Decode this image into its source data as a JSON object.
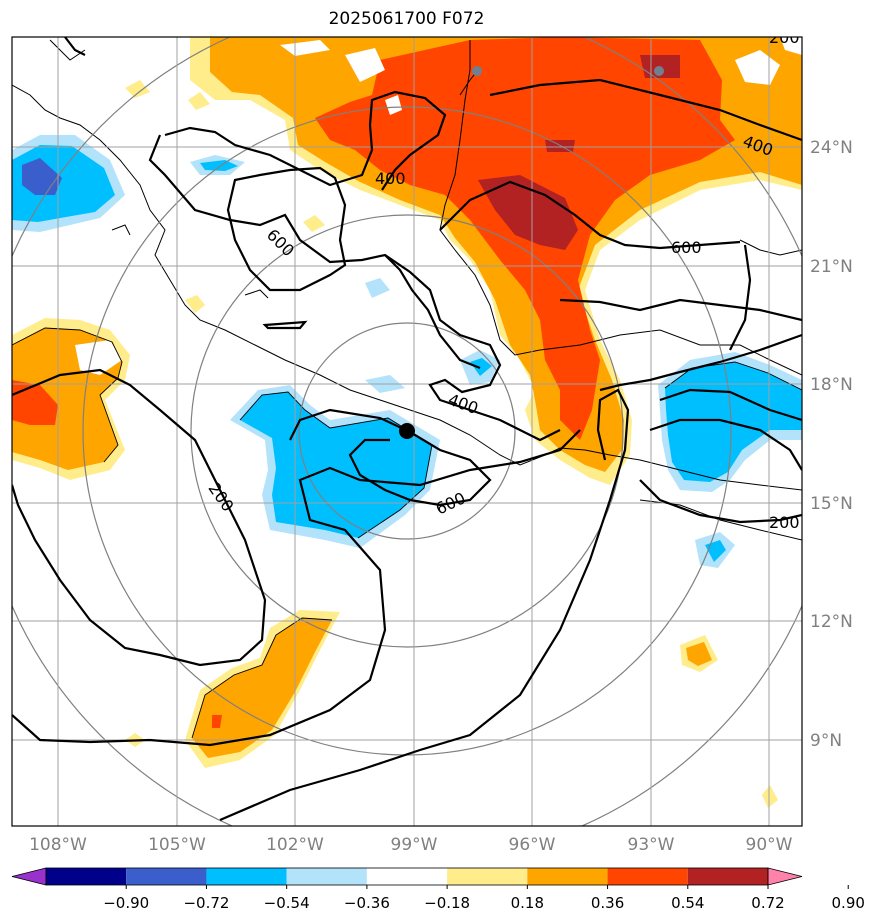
{
  "title": "2025061700 F072",
  "lon_labels": [
    "108°W",
    "105°W",
    "102°W",
    "99°W",
    "96°W",
    "93°W",
    "90°W"
  ],
  "lat_labels": [
    "24°N",
    "21°N",
    "18°N",
    "15°N",
    "12°N",
    "9°N"
  ],
  "contour_labels": [
    "200",
    "400",
    "600",
    "400",
    "600",
    "200",
    "400",
    "600",
    "200"
  ],
  "colorbar": {
    "tick_labels": [
      "−0.90",
      "−0.72",
      "−0.54",
      "−0.36",
      "−0.18",
      "0.18",
      "0.36",
      "0.54",
      "0.72",
      "0.90"
    ],
    "colors": [
      "#9932cc",
      "#00008b",
      "#3a5fcd",
      "#00bfff",
      "#b3e2fb",
      "#ffffff",
      "#ffec8b",
      "#ffa500",
      "#ff4500",
      "#b22222",
      "#ff82ab"
    ]
  },
  "palette": {
    "light_yellow": "#ffec8b",
    "orange": "#ffa500",
    "red_orange": "#ff4500",
    "dark_red": "#b22222",
    "light_blue": "#b3e2fb",
    "deep_sky": "#00bfff",
    "royal_blue": "#3a5fcd",
    "grid": "#a0a0a0",
    "range_ring": "#808080",
    "label_gray": "#808080",
    "storm_center": "#000000",
    "station_dot": "#708090"
  }
}
